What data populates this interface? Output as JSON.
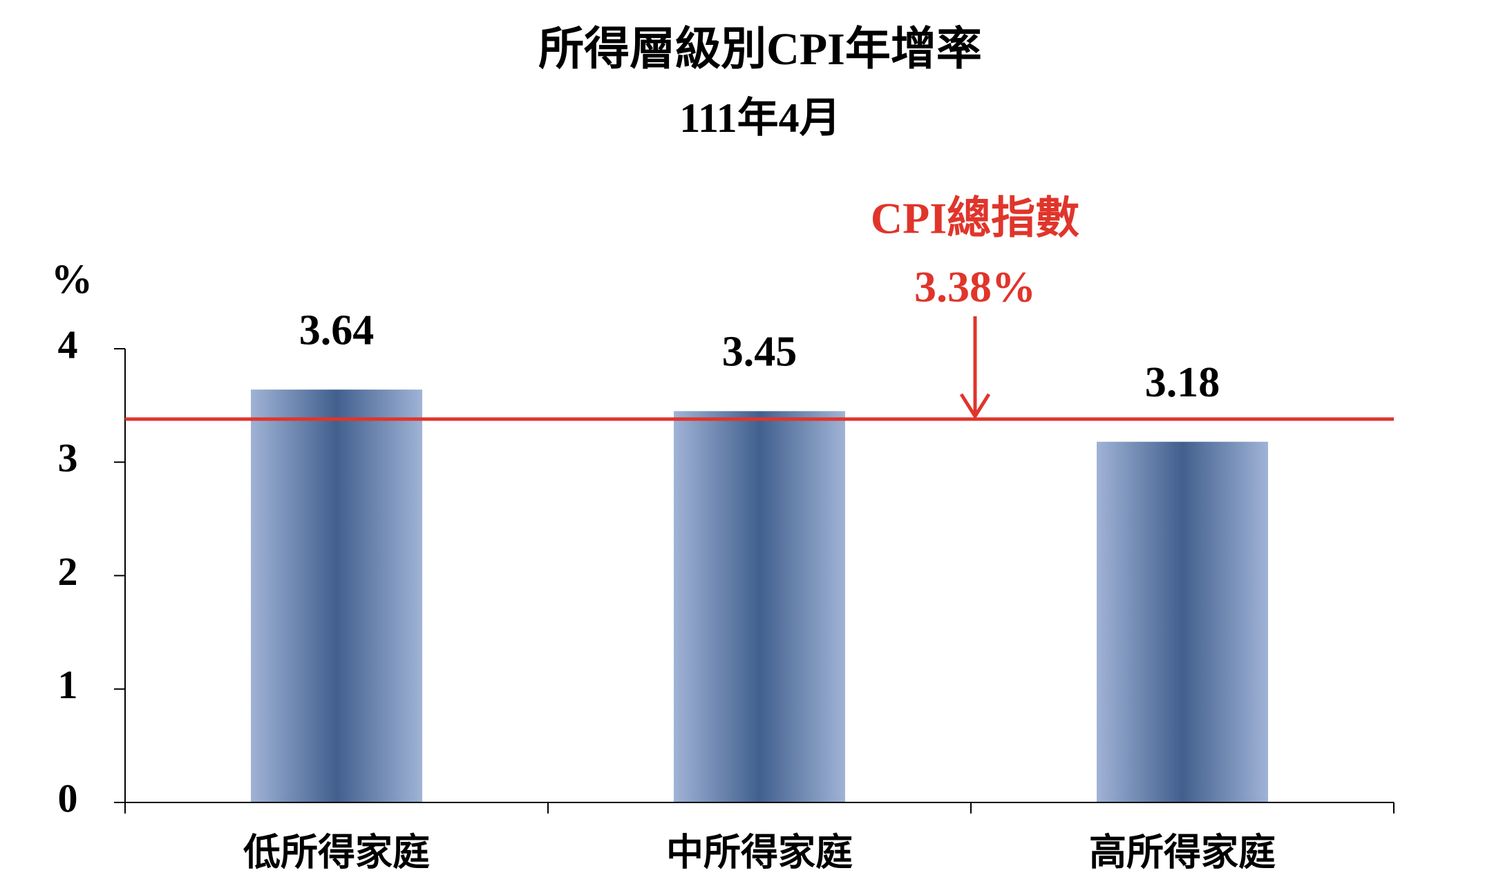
{
  "chart_data": {
    "type": "bar",
    "title": "所得層級別CPI年增率",
    "subtitle": "111年4月",
    "y_label": "%",
    "categories": [
      "低所得家庭",
      "中所得家庭",
      "高所得家庭"
    ],
    "values": [
      3.64,
      3.45,
      3.18
    ],
    "color": "#41608e",
    "edge_color": "#a0b3d6",
    "ylim": [
      0,
      4
    ],
    "yticks": [
      0,
      1,
      2,
      3,
      4
    ],
    "reference_line": {
      "name": "CPI總指數",
      "value": 3.38,
      "label": "3.38%",
      "color": "#e0352b"
    }
  }
}
